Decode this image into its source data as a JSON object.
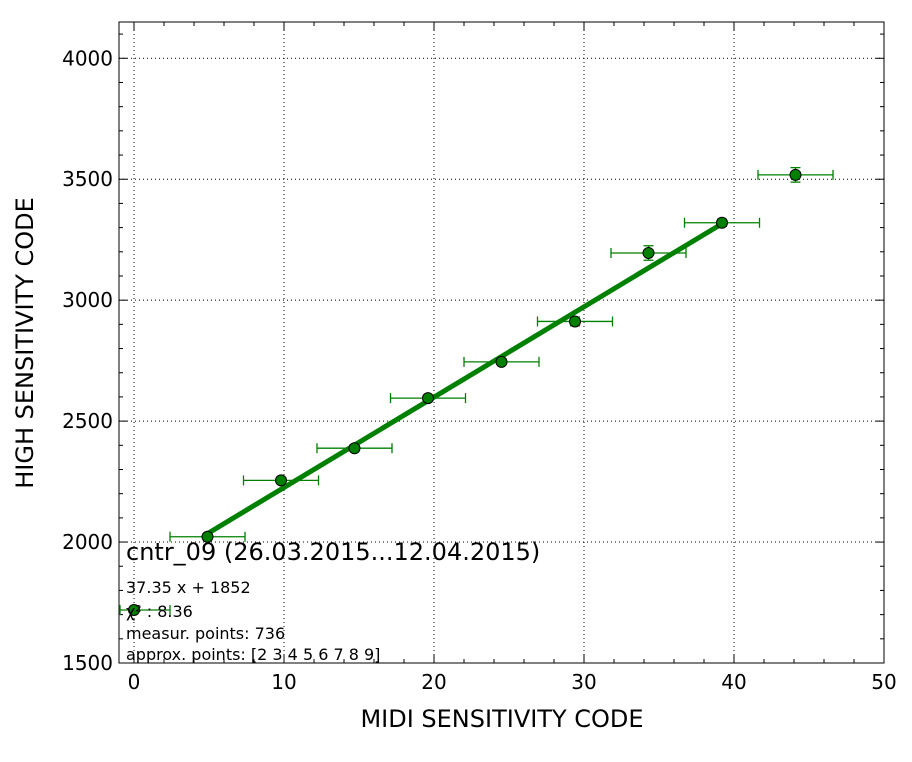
{
  "chart_data": {
    "type": "scatter",
    "title": "cntr_09 (26.03.2015...12.04.2015)",
    "xlabel": "MIDI SENSITIVITY CODE",
    "ylabel": "HIGH SENSITIVITY CODE",
    "xlim": [
      -1,
      50
    ],
    "ylim": [
      1500,
      4150
    ],
    "xticks": [
      0,
      10,
      20,
      30,
      40,
      50
    ],
    "yticks": [
      1500,
      2000,
      2500,
      3000,
      3500,
      4000
    ],
    "xtick_labels": [
      "0",
      "10",
      "20",
      "30",
      "40",
      "50"
    ],
    "ytick_labels": [
      "1500",
      "2000",
      "2500",
      "3000",
      "3500",
      "4000"
    ],
    "grid": true,
    "colors": {
      "series": "#008000",
      "marker_edge": "#000000"
    },
    "series": [
      {
        "points": [
          {
            "x": 4.9,
            "y": 2022,
            "xerr": 2.5,
            "yerr": 8
          },
          {
            "x": 9.8,
            "y": 2255,
            "xerr": 2.5,
            "yerr": 12
          },
          {
            "x": 14.7,
            "y": 2388,
            "xerr": 2.5,
            "yerr": 14
          },
          {
            "x": 19.6,
            "y": 2595,
            "xerr": 2.5,
            "yerr": 12
          },
          {
            "x": 24.5,
            "y": 2745,
            "xerr": 2.5,
            "yerr": 12
          },
          {
            "x": 29.4,
            "y": 2912,
            "xerr": 2.5,
            "yerr": 18
          },
          {
            "x": 34.3,
            "y": 3195,
            "xerr": 2.5,
            "yerr": 30
          },
          {
            "x": 39.2,
            "y": 3320,
            "xerr": 2.5,
            "yerr": 15
          },
          {
            "x": 44.1,
            "y": 3518,
            "xerr": 2.5,
            "yerr": 30
          }
        ]
      }
    ],
    "fit": {
      "slope": 37.35,
      "intercept": 1852,
      "x_range": [
        4.9,
        39.2
      ]
    },
    "annotations": {
      "equation": "37.35 x + 1852",
      "chi2": "χ² : 8.36",
      "measur_points": "measur. points: 736",
      "approx_points": "approx. points: [2 3 4 5 6 7 8 9]"
    }
  }
}
